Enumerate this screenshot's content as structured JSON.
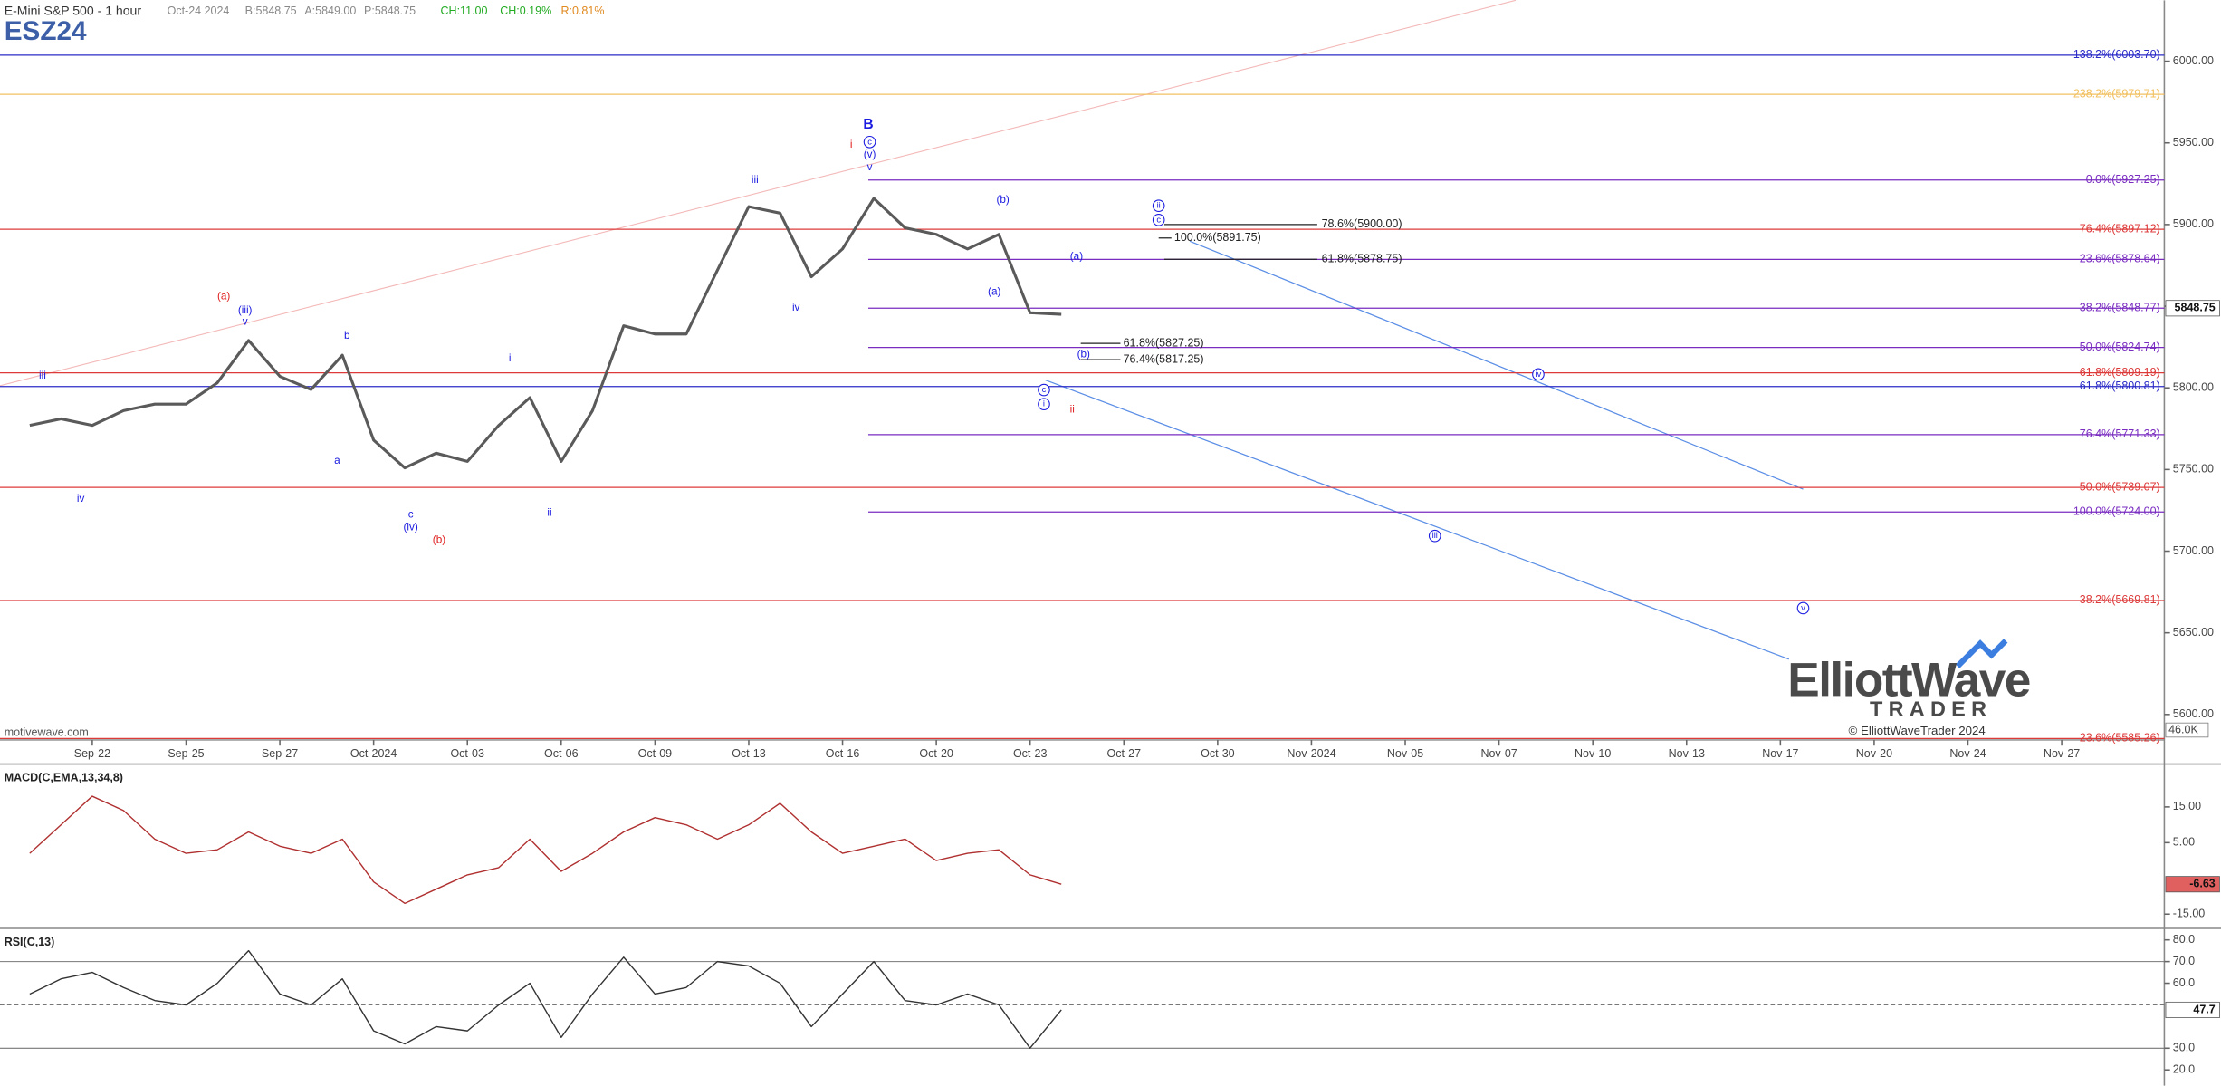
{
  "header": {
    "symbol_name": "E-Mini S&P 500 - 1 hour",
    "date": "Oct-24 2024",
    "bid": "B:5848.75",
    "ask": "A:5849.00",
    "price": "P:5848.75",
    "change": "CH:11.00",
    "change_pct": "CH:0.19%",
    "range": "R:0.81%",
    "ticker": "ESZ24"
  },
  "watermark": "motivewave.com",
  "logo": {
    "line1": "ElliottWave",
    "line2": "TRADER",
    "copyright": "© ElliottWaveTrader 2024"
  },
  "chart_data": [
    {
      "type": "line",
      "color": "#5a5a5a",
      "categories": [
        null,
        null,
        "Sep-22",
        null,
        null,
        "Sep-25",
        null,
        null,
        "Sep-27",
        null,
        null,
        "Oct-2024",
        null,
        null,
        "Oct-03",
        null,
        null,
        "Oct-06",
        null,
        null,
        "Oct-09",
        null,
        null,
        "Oct-13",
        null,
        null,
        "Oct-16",
        null,
        null,
        "Oct-20",
        null,
        null,
        "Oct-23",
        null,
        null,
        "Oct-27",
        null,
        null,
        "Oct-30",
        null,
        null,
        "Nov-2024",
        null,
        null,
        "Nov-05",
        null,
        null,
        "Nov-07",
        null,
        null,
        "Nov-10",
        null,
        null,
        "Nov-13",
        null,
        null,
        "Nov-17",
        null,
        null,
        "Nov-20",
        null,
        null,
        "Nov-24",
        null,
        null,
        "Nov-27"
      ],
      "values": [
        5777,
        5781,
        5777,
        5786,
        5790,
        5790,
        5803,
        5829,
        5807,
        5799,
        5820,
        5768,
        5751,
        5760,
        5755,
        5777,
        5794,
        5755,
        5786,
        5838,
        5833,
        5833,
        5872,
        5911,
        5907,
        5868,
        5885,
        5916,
        5898,
        5894,
        5885,
        5894,
        5846,
        5845,
        null,
        null,
        null,
        null,
        null,
        null,
        null,
        null,
        null,
        null,
        null,
        null,
        null,
        null,
        null,
        null,
        null,
        null,
        null,
        null,
        null,
        null,
        null,
        null,
        null,
        null,
        null,
        null,
        null,
        null,
        null,
        null
      ],
      "ylim": [
        5584.4,
        6037.3
      ],
      "yticks": [
        {
          "value": 5600,
          "label": "5600.00"
        },
        {
          "value": 5650,
          "label": "5650.00"
        },
        {
          "value": 5700,
          "label": "5700.00"
        },
        {
          "value": 5750,
          "label": "5750.00"
        },
        {
          "value": 5800,
          "label": "5800.00"
        },
        {
          "value": 5850,
          "label": "5850.00"
        },
        {
          "value": 5900,
          "label": "5900.00"
        },
        {
          "value": 5950,
          "label": "5950.00"
        },
        {
          "value": 6000,
          "label": "6000.00"
        }
      ],
      "last_value": 5848.75,
      "volume_label": "46.0K",
      "fib_levels": [
        {
          "label": "138.2%(6003.70)",
          "value": 6003.7,
          "color": "#2b2bc8",
          "span": "full"
        },
        {
          "label": "238.2%(5979.71)",
          "value": 5979.71,
          "color": "#f2c060",
          "span": "full"
        },
        {
          "label": "0.0%(5927.25)",
          "value": 5927.25,
          "color": "#7a2cc0",
          "span": "partial"
        },
        {
          "label": "76.4%(5897.12)",
          "value": 5897.12,
          "color": "#dd3a3a",
          "span": "full"
        },
        {
          "label": "23.6%(5878.64)",
          "value": 5878.64,
          "color": "#7a2cc0",
          "span": "partial"
        },
        {
          "label": "38.2%(5848.77)",
          "value": 5848.77,
          "color": "#7a2cc0",
          "span": "partial"
        },
        {
          "label": "50.0%(5824.74)",
          "value": 5824.74,
          "color": "#7a2cc0",
          "span": "partial"
        },
        {
          "label": "61.8%(5809.19)",
          "value": 5809.19,
          "color": "#dd3a3a",
          "span": "full"
        },
        {
          "label": "61.8%(5800.81)",
          "value": 5800.81,
          "color": "#2b2bc8",
          "span": "full"
        },
        {
          "label": "76.4%(5771.33)",
          "value": 5771.33,
          "color": "#7a2cc0",
          "span": "partial"
        },
        {
          "label": "50.0%(5739.07)",
          "value": 5739.07,
          "color": "#dd3a3a",
          "span": "full"
        },
        {
          "label": "100.0%(5724.00)",
          "value": 5724.0,
          "color": "#7a2cc0",
          "span": "partial"
        },
        {
          "label": "38.2%(5669.81)",
          "value": 5669.81,
          "color": "#dd3a3a",
          "span": "full"
        },
        {
          "label": "23.6%(5585.26)",
          "value": 5585.26,
          "color": "#dd3a3a",
          "span": "full"
        }
      ],
      "fib_targets": [
        {
          "label": "78.6%(5900.00)",
          "value": 5900.0
        },
        {
          "label": "100.0%(5891.75)",
          "value": 5891.75
        },
        {
          "label": "61.8%(5878.75)",
          "value": 5878.75
        },
        {
          "label": "61.8%(5827.25)",
          "value": 5827.25
        },
        {
          "label": "76.4%(5817.25)",
          "value": 5817.25
        }
      ],
      "wave_labels": [
        {
          "text": "B",
          "color": "#1a1ae0"
        },
        {
          "text": "c",
          "color": "#1a1ae0",
          "circle": true
        },
        {
          "text": "(v)",
          "color": "#1a1ae0"
        },
        {
          "text": "v",
          "color": "#1a1ae0"
        },
        {
          "text": "i",
          "color": "#e02020"
        },
        {
          "text": "iii",
          "color": "#1a1ae0"
        },
        {
          "text": "iv",
          "color": "#1a1ae0"
        },
        {
          "text": "(b)",
          "color": "#1a1ae0"
        },
        {
          "text": "(a)",
          "color": "#1a1ae0"
        },
        {
          "text": "ii",
          "color": "#1a1ae0",
          "circle": true
        },
        {
          "text": "c",
          "color": "#1a1ae0",
          "circle": true
        },
        {
          "text": "(a)",
          "color": "#1a1ae0"
        },
        {
          "text": "(b)",
          "color": "#1a1ae0"
        },
        {
          "text": "c",
          "color": "#1a1ae0",
          "circle": true
        },
        {
          "text": "i",
          "color": "#1a1ae0",
          "circle": true
        },
        {
          "text": "ii",
          "color": "#e02020"
        },
        {
          "text": "iv",
          "color": "#1a1ae0",
          "circle": true
        },
        {
          "text": "iii",
          "color": "#1a1ae0",
          "circle": true
        },
        {
          "text": "v",
          "color": "#1a1ae0",
          "circle": true
        },
        {
          "text": "(a)",
          "color": "#e02020"
        },
        {
          "text": "(iii)",
          "color": "#1a1ae0"
        },
        {
          "text": "v",
          "color": "#1a1ae0"
        },
        {
          "text": "iii",
          "color": "#1a1ae0"
        },
        {
          "text": "iv",
          "color": "#1a1ae0"
        },
        {
          "text": "b",
          "color": "#1a1ae0"
        },
        {
          "text": "a",
          "color": "#1a1ae0"
        },
        {
          "text": "c",
          "color": "#1a1ae0"
        },
        {
          "text": "(iv)",
          "color": "#1a1ae0"
        },
        {
          "text": "(b)",
          "color": "#e02020"
        },
        {
          "text": "i",
          "color": "#1a1ae0"
        },
        {
          "text": "ii",
          "color": "#1a1ae0"
        }
      ]
    },
    {
      "type": "line",
      "title": "MACD(C,EMA,13,34,8)",
      "color": "#b03030",
      "values": [
        2,
        10,
        18,
        14,
        6,
        2,
        3,
        8,
        4,
        2,
        6,
        -6,
        -12,
        -8,
        -4,
        -2,
        6,
        -3,
        2,
        8,
        12,
        10,
        6,
        10,
        16,
        8,
        2,
        4,
        6,
        0,
        2,
        3,
        -4,
        -6.63,
        null,
        null,
        null,
        null,
        null,
        null,
        null,
        null,
        null,
        null,
        null,
        null,
        null,
        null,
        null,
        null,
        null,
        null,
        null,
        null,
        null,
        null,
        null,
        null,
        null,
        null,
        null,
        null,
        null,
        null,
        null,
        null
      ],
      "ylim": [
        -19,
        27
      ],
      "yticks": [
        {
          "value": 15,
          "label": "15.00"
        },
        {
          "value": 5,
          "label": "5.00"
        },
        {
          "value": -15,
          "label": "-15.00"
        }
      ],
      "last_value": -6.63
    },
    {
      "type": "line",
      "title": "RSI(C,13)",
      "color": "#333333",
      "values": [
        55,
        62,
        65,
        58,
        52,
        50,
        60,
        75,
        55,
        50,
        62,
        38,
        32,
        40,
        38,
        50,
        60,
        35,
        55,
        72,
        55,
        58,
        70,
        68,
        60,
        40,
        55,
        70,
        52,
        50,
        55,
        50,
        30,
        47.7,
        null,
        null,
        null,
        null,
        null,
        null,
        null,
        null,
        null,
        null,
        null,
        null,
        null,
        null,
        null,
        null,
        null,
        null,
        null,
        null,
        null,
        null,
        null,
        null,
        null,
        null,
        null,
        null,
        null,
        null,
        null,
        null
      ],
      "ylim": [
        12.7,
        85.3
      ],
      "yticks": [
        {
          "value": 80,
          "label": "80.0"
        },
        {
          "value": 70,
          "label": "70.0"
        },
        {
          "value": 60,
          "label": "60.0"
        },
        {
          "value": 30,
          "label": "30.0"
        },
        {
          "value": 20,
          "label": "20.0"
        }
      ],
      "guide_lines": [
        70,
        30
      ],
      "mid_line": 50,
      "last_value": 47.7
    }
  ]
}
